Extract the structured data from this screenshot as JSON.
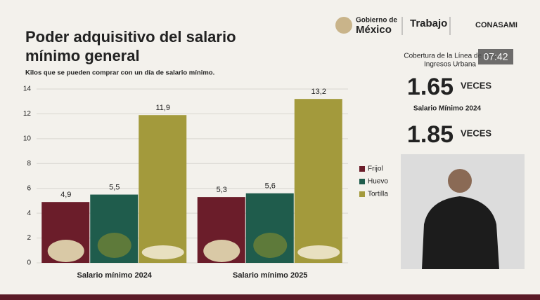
{
  "chart_data": {
    "type": "bar",
    "title": "Poder adquisitivo del salario mínimo general",
    "subtitle": "Kilos que se pueden comprar con un día de salario mínimo.",
    "categories": [
      "Salario mínimo 2024",
      "Salario mínimo 2025"
    ],
    "series": [
      {
        "name": "Frijol",
        "color": "#6b1d2a",
        "values": [
          4.9,
          5.3
        ],
        "value_labels": [
          "4,9",
          "5,3"
        ]
      },
      {
        "name": "Huevo",
        "color": "#1f5c4c",
        "values": [
          5.5,
          5.6
        ],
        "value_labels": [
          "5,5",
          "5,6"
        ]
      },
      {
        "name": "Tortilla",
        "color": "#a39a3c",
        "values": [
          11.9,
          13.2
        ],
        "value_labels": [
          "11,9",
          "13,2"
        ]
      }
    ],
    "ylim": [
      0,
      14
    ],
    "yticks": [
      0,
      2,
      4,
      6,
      8,
      10,
      12,
      14
    ],
    "grid": true,
    "legend": "right"
  },
  "header": {
    "gov_line1": "Gobierno de",
    "gov_line2": "México",
    "ministry": "Trabajo",
    "agency": "CONASAMI"
  },
  "clock": "07:42",
  "panel": {
    "caption_line1": "Cobertura de la Línea de Pob",
    "caption_line2": "Ingresos Urbana",
    "stats": [
      {
        "value": 1.65,
        "unit": "VECES",
        "caption": "Salario Mínimo 2024"
      },
      {
        "value": 1.85,
        "unit": "VECES"
      }
    ]
  }
}
